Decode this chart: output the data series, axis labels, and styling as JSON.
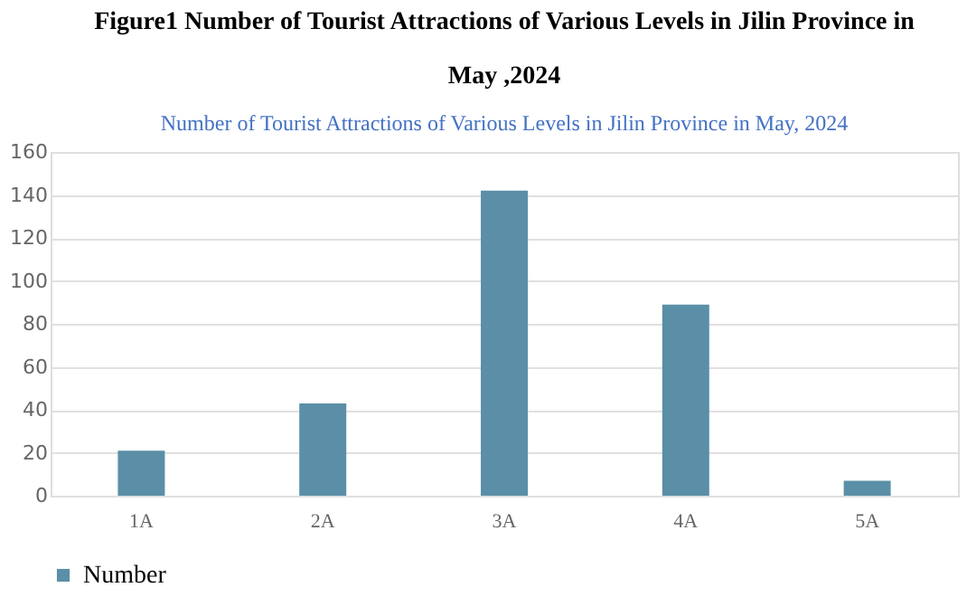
{
  "chart_data": {
    "type": "bar",
    "title": [
      "Figure1 Number of Tourist Attractions of Various Levels in Jilin Province in",
      "May ,2024"
    ],
    "subtitle": "Number of Tourist Attractions of Various Levels in Jilin Province in May, 2024",
    "categories": [
      "1A",
      "2A",
      "3A",
      "4A",
      "5A"
    ],
    "series": [
      {
        "name": "Number",
        "color": "#5a8fa7",
        "values": [
          21,
          43,
          142,
          89,
          7
        ]
      }
    ],
    "ylim": [
      0,
      160
    ],
    "yticks": [
      0,
      20,
      40,
      60,
      80,
      100,
      120,
      140,
      160
    ],
    "grid": "y",
    "legend": "bottom"
  }
}
